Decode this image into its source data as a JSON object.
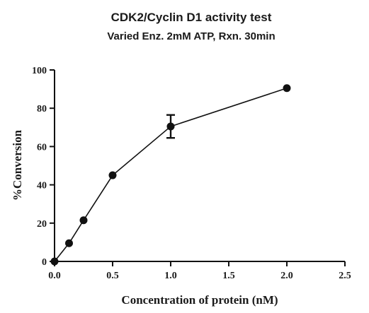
{
  "chart_data": {
    "type": "line",
    "title": "CDK2/Cyclin D1 activity test",
    "subtitle": "Varied Enz. 2mM ATP, Rxn. 30min",
    "xlabel": "Concentration of protein (nM)",
    "ylabel": "%Conversion",
    "xlim": [
      0,
      2.5
    ],
    "ylim": [
      0,
      100
    ],
    "xticks": [
      0,
      0.5,
      1.0,
      1.5,
      2.0,
      2.5
    ],
    "xtick_labels": [
      "0.0",
      "0.5",
      "1.0",
      "1.5",
      "2.0",
      "2.5"
    ],
    "yticks": [
      0,
      20,
      40,
      60,
      80,
      100
    ],
    "ytick_labels": [
      "0",
      "20",
      "40",
      "60",
      "80",
      "100"
    ],
    "grid": false,
    "series": [
      {
        "x": [
          0,
          0.125,
          0.25,
          0.5,
          1.0,
          2.0
        ],
        "y": [
          0,
          9.5,
          21.5,
          45,
          70.5,
          90.5
        ],
        "error": [
          0,
          0,
          0,
          0,
          6,
          0
        ],
        "color": "#111111"
      }
    ]
  }
}
